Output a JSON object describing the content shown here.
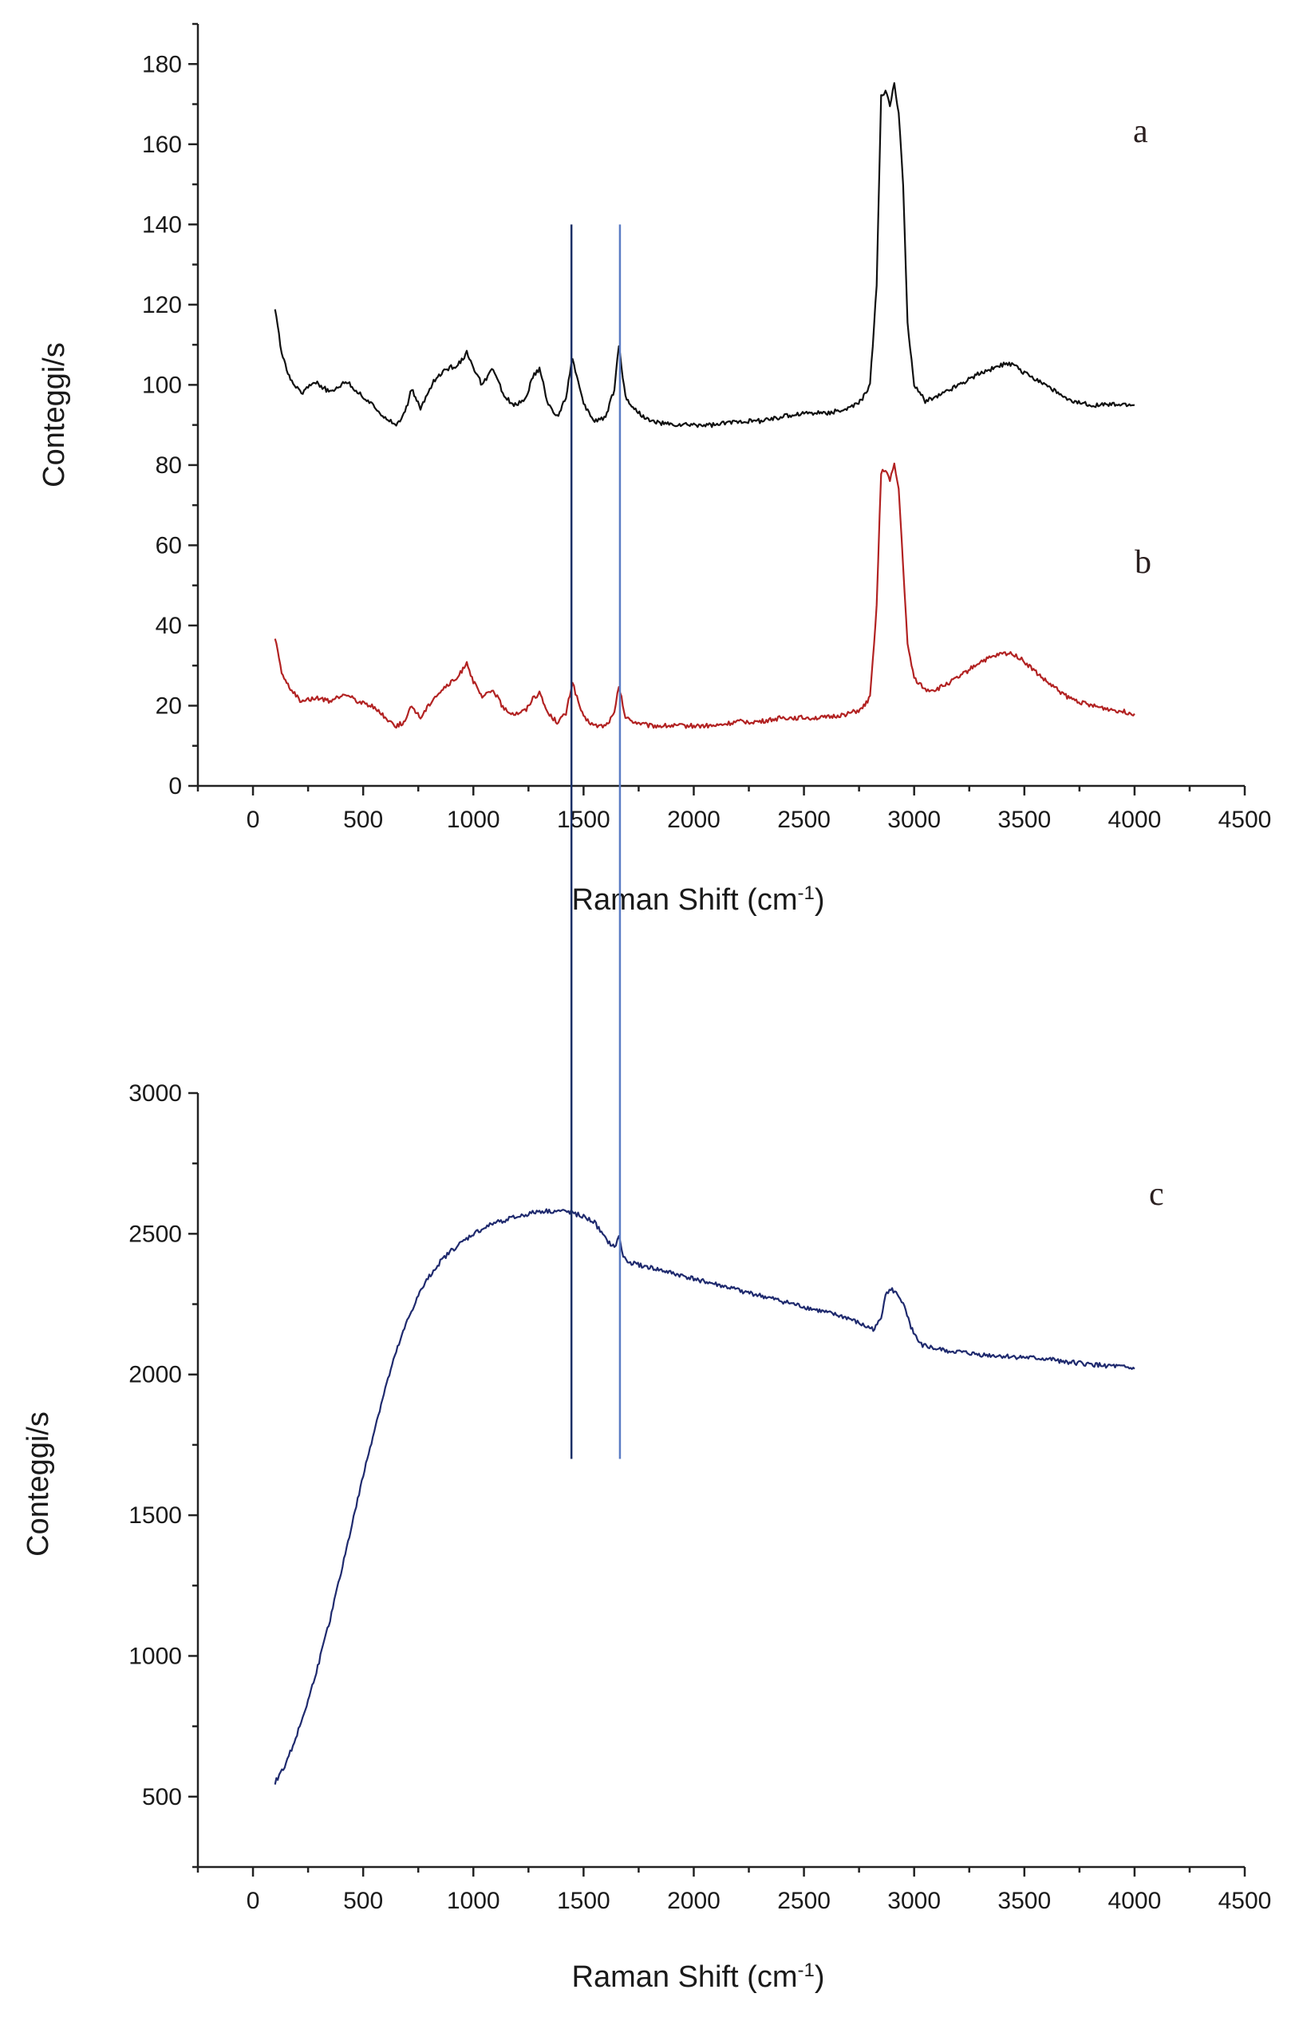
{
  "chart_data": [
    {
      "type": "line",
      "panel": "top",
      "xlabel": "Raman Shift (cm",
      "xlabel_sup": "-1",
      "xlabel_end": ")",
      "ylabel": "Conteggi/s",
      "xlim": [
        -250,
        4500
      ],
      "ylim": [
        0,
        190
      ],
      "x_ticks": [
        "0",
        "500",
        "1000",
        "1500",
        "2000",
        "2500",
        "3000",
        "3500",
        "4000",
        "4500"
      ],
      "x_tick_values": [
        0,
        500,
        1000,
        1500,
        2000,
        2500,
        3000,
        3500,
        4000,
        4500
      ],
      "y_ticks": [
        "0",
        "20",
        "40",
        "60",
        "80",
        "100",
        "120",
        "140",
        "160",
        "180"
      ],
      "y_tick_values": [
        0,
        20,
        40,
        60,
        80,
        100,
        120,
        140,
        160,
        180
      ],
      "series": [
        {
          "name": "a",
          "color": "#111111",
          "x": [
            100,
            130,
            170,
            220,
            280,
            350,
            420,
            480,
            540,
            600,
            650,
            690,
            720,
            760,
            820,
            880,
            930,
            970,
            1000,
            1040,
            1090,
            1140,
            1190,
            1240,
            1270,
            1300,
            1340,
            1380,
            1420,
            1450,
            1470,
            1500,
            1550,
            1600,
            1640,
            1660,
            1690,
            1730,
            1800,
            1900,
            2000,
            2100,
            2200,
            2300,
            2400,
            2500,
            2600,
            2700,
            2760,
            2800,
            2830,
            2850,
            2870,
            2890,
            2910,
            2930,
            2950,
            2970,
            3000,
            3050,
            3100,
            3200,
            3300,
            3400,
            3450,
            3500,
            3600,
            3700,
            3800,
            3900,
            4000
          ],
          "y": [
            119,
            108,
            101,
            98,
            101,
            98,
            101,
            98,
            95,
            92,
            90,
            93,
            99,
            94,
            101,
            104,
            105,
            108,
            104,
            100,
            104,
            97,
            95,
            97,
            102,
            104,
            95,
            92,
            97,
            107,
            102,
            95,
            91,
            92,
            99,
            110,
            97,
            94,
            91,
            90,
            90,
            90,
            91,
            91,
            92,
            93,
            93,
            94,
            96,
            100,
            125,
            172,
            173,
            170,
            175,
            168,
            150,
            115,
            100,
            96,
            97,
            100,
            103,
            105,
            105,
            103,
            100,
            96,
            95,
            95,
            95
          ]
        },
        {
          "name": "b",
          "color": "#b22222",
          "x": [
            100,
            130,
            170,
            220,
            280,
            350,
            420,
            480,
            540,
            600,
            650,
            690,
            720,
            760,
            820,
            880,
            930,
            970,
            1000,
            1040,
            1090,
            1140,
            1190,
            1240,
            1270,
            1300,
            1340,
            1380,
            1420,
            1450,
            1470,
            1500,
            1550,
            1600,
            1640,
            1660,
            1690,
            1730,
            1800,
            1900,
            2000,
            2100,
            2200,
            2300,
            2400,
            2500,
            2600,
            2700,
            2760,
            2800,
            2830,
            2850,
            2870,
            2890,
            2910,
            2930,
            2950,
            2970,
            3000,
            3050,
            3100,
            3200,
            3300,
            3400,
            3450,
            3500,
            3600,
            3700,
            3800,
            3900,
            4000
          ],
          "y": [
            37,
            28,
            24,
            21,
            22,
            21,
            23,
            21,
            20,
            17,
            15,
            16,
            20,
            17,
            22,
            25,
            27,
            31,
            26,
            22,
            24,
            19,
            18,
            19,
            22,
            23,
            18,
            16,
            18,
            26,
            22,
            17,
            15,
            15,
            18,
            25,
            17,
            16,
            15,
            15,
            15,
            15,
            16,
            16,
            17,
            17,
            17,
            18,
            19,
            22,
            45,
            78,
            79,
            76,
            80,
            74,
            55,
            35,
            27,
            24,
            24,
            27,
            31,
            33,
            33,
            31,
            26,
            22,
            20,
            19,
            18
          ]
        }
      ],
      "annotations": [
        "a",
        "b"
      ]
    },
    {
      "type": "line",
      "panel": "bottom",
      "xlabel": "Raman Shift (cm",
      "xlabel_sup": "-1",
      "xlabel_end": ")",
      "ylabel": "Conteggi/s",
      "xlim": [
        -250,
        4500
      ],
      "ylim": [
        250,
        3000
      ],
      "x_ticks": [
        "0",
        "500",
        "1000",
        "1500",
        "2000",
        "2500",
        "3000",
        "3500",
        "4000",
        "4500"
      ],
      "x_tick_values": [
        0,
        500,
        1000,
        1500,
        2000,
        2500,
        3000,
        3500,
        4000,
        4500
      ],
      "y_ticks": [
        "500",
        "1000",
        "1500",
        "2000",
        "2500",
        "3000"
      ],
      "y_tick_values": [
        500,
        1000,
        1500,
        2000,
        2500,
        3000
      ],
      "series": [
        {
          "name": "c",
          "color": "#1f2a6e",
          "x": [
            100,
            150,
            200,
            250,
            300,
            350,
            400,
            450,
            500,
            550,
            600,
            650,
            700,
            750,
            800,
            850,
            900,
            950,
            1000,
            1050,
            1100,
            1150,
            1200,
            1250,
            1300,
            1350,
            1400,
            1450,
            1500,
            1550,
            1600,
            1640,
            1660,
            1680,
            1700,
            1800,
            1900,
            2000,
            2100,
            2200,
            2300,
            2400,
            2500,
            2600,
            2700,
            2780,
            2820,
            2850,
            2870,
            2900,
            2930,
            2950,
            2980,
            3020,
            3100,
            3200,
            3300,
            3400,
            3500,
            3600,
            3700,
            3800,
            3900,
            4000
          ],
          "y": [
            550,
            620,
            720,
            840,
            980,
            1130,
            1300,
            1470,
            1640,
            1800,
            1950,
            2080,
            2190,
            2280,
            2350,
            2400,
            2440,
            2470,
            2500,
            2520,
            2540,
            2550,
            2560,
            2570,
            2580,
            2580,
            2580,
            2575,
            2560,
            2540,
            2480,
            2450,
            2490,
            2420,
            2400,
            2380,
            2360,
            2340,
            2320,
            2300,
            2280,
            2260,
            2240,
            2220,
            2200,
            2170,
            2160,
            2200,
            2290,
            2300,
            2280,
            2250,
            2180,
            2110,
            2090,
            2080,
            2070,
            2065,
            2060,
            2055,
            2045,
            2035,
            2030,
            2020
          ]
        }
      ],
      "annotations": [
        "c"
      ]
    }
  ],
  "reference_lines": {
    "x_values": [
      1445,
      1665
    ],
    "colors": [
      "#1a2f66",
      "#5b7cc4"
    ]
  }
}
